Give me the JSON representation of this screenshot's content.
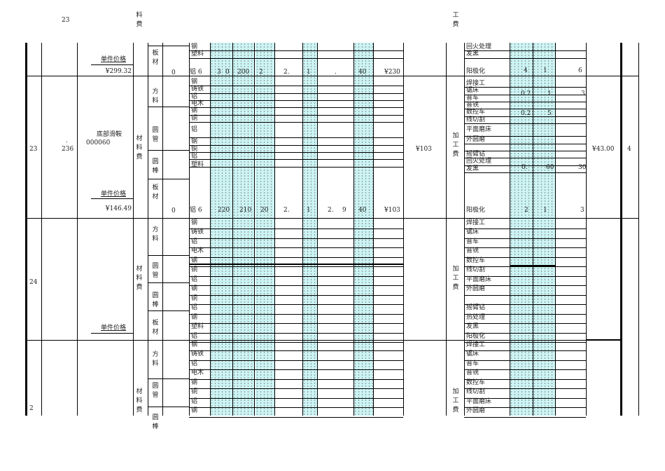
{
  "top": {
    "row_no": "23",
    "mat_fee": "料\n费",
    "proc_fee": "工\n费"
  },
  "mat_row_labels": [
    "钢",
    "塑料",
    "铝",
    "钢",
    "铸铁",
    "铝",
    "电木",
    "钢",
    "铜",
    "铝",
    "钢",
    "铜",
    "铝",
    "钢",
    "塑料",
    "铝"
  ],
  "proc_row_labels": [
    "回火处理",
    "发黑",
    "阳极化",
    "焊接工",
    "锯床",
    "普车",
    "普铣",
    "数控车",
    "线切割",
    "平面磨床",
    "外圆磨",
    "",
    "摇臂钻",
    "回火处理",
    "发黑",
    "阳极化"
  ],
  "group1": {
    "unit_price_label": "单件价格",
    "unit_price": "¥299.32",
    "sheet_label": "板\n材",
    "zero": "0",
    "al6": "铝 6",
    "vals": [
      "3",
      "0",
      "200",
      "2",
      "2.",
      "1",
      ".",
      "40",
      "¥230"
    ],
    "proc": {
      "vals": [
        "4",
        "1",
        "6"
      ]
    }
  },
  "group2": {
    "row_no": "23",
    "code_a": ".",
    "code_b": "236",
    "name": "底部滑鞍",
    "part_no": "000060",
    "mat_group": "材\n料\n费",
    "square": "方\n料",
    "tube": "圆\n管",
    "rod": "圆\n棒",
    "sheet": "板\n材",
    "unit_price_label": "单件价格",
    "unit_price": "¥146.49",
    "zero": "0",
    "al6": "铝 6",
    "vals": [
      "220",
      "210",
      "20",
      "2.",
      "1",
      "2.",
      "9",
      "40",
      "¥103"
    ],
    "mat_total": "¥103",
    "proc_group": "加\n工\n费",
    "saw_vals": [
      "0.2",
      "1",
      "3"
    ],
    "mill_vals": [
      "0.2",
      "5"
    ],
    "round_vals": [
      "0.",
      "60",
      "30"
    ],
    "anod_vals": [
      "2",
      "1",
      "3"
    ],
    "proc_total": "¥43.00",
    "count": "4"
  },
  "group3": {
    "row_no": "24",
    "unit_price_label": "单件价格",
    "mat_group": "材\n料\n费",
    "square": "方\n料",
    "tube": "圆\n管",
    "rod": "圆\n棒",
    "sheet": "板\n材",
    "proc_group": "加\n工\n费",
    "mat_labels": [
      "钢",
      "铸铁",
      "铝",
      "电木",
      "钢",
      "铜",
      "铝",
      "钢",
      "铜",
      "铝",
      "钢",
      "塑料",
      "铝"
    ],
    "proc_labels": [
      "焊接工",
      "锯床",
      "普车",
      "普铣",
      "数控车",
      "线切割",
      "平面磨床",
      "外圆磨",
      "",
      "摇臂钻",
      "热处理",
      "发黑",
      "阳极化"
    ]
  },
  "group4": {
    "row_no": "2",
    "mat_group": "材\n料\n费",
    "square": "方\n料",
    "tube": "圆\n管",
    "rod": "圆\n棒",
    "proc_group": "加\n工\n费",
    "mat_labels": [
      "钢",
      "铸铁",
      "铝",
      "电木",
      "钢",
      "铜",
      "铝",
      "钢"
    ],
    "proc_labels": [
      "焊接工",
      "锯床",
      "普车",
      "普铣",
      "数控车",
      "线切割",
      "平面磨床",
      "外圆磨"
    ]
  }
}
